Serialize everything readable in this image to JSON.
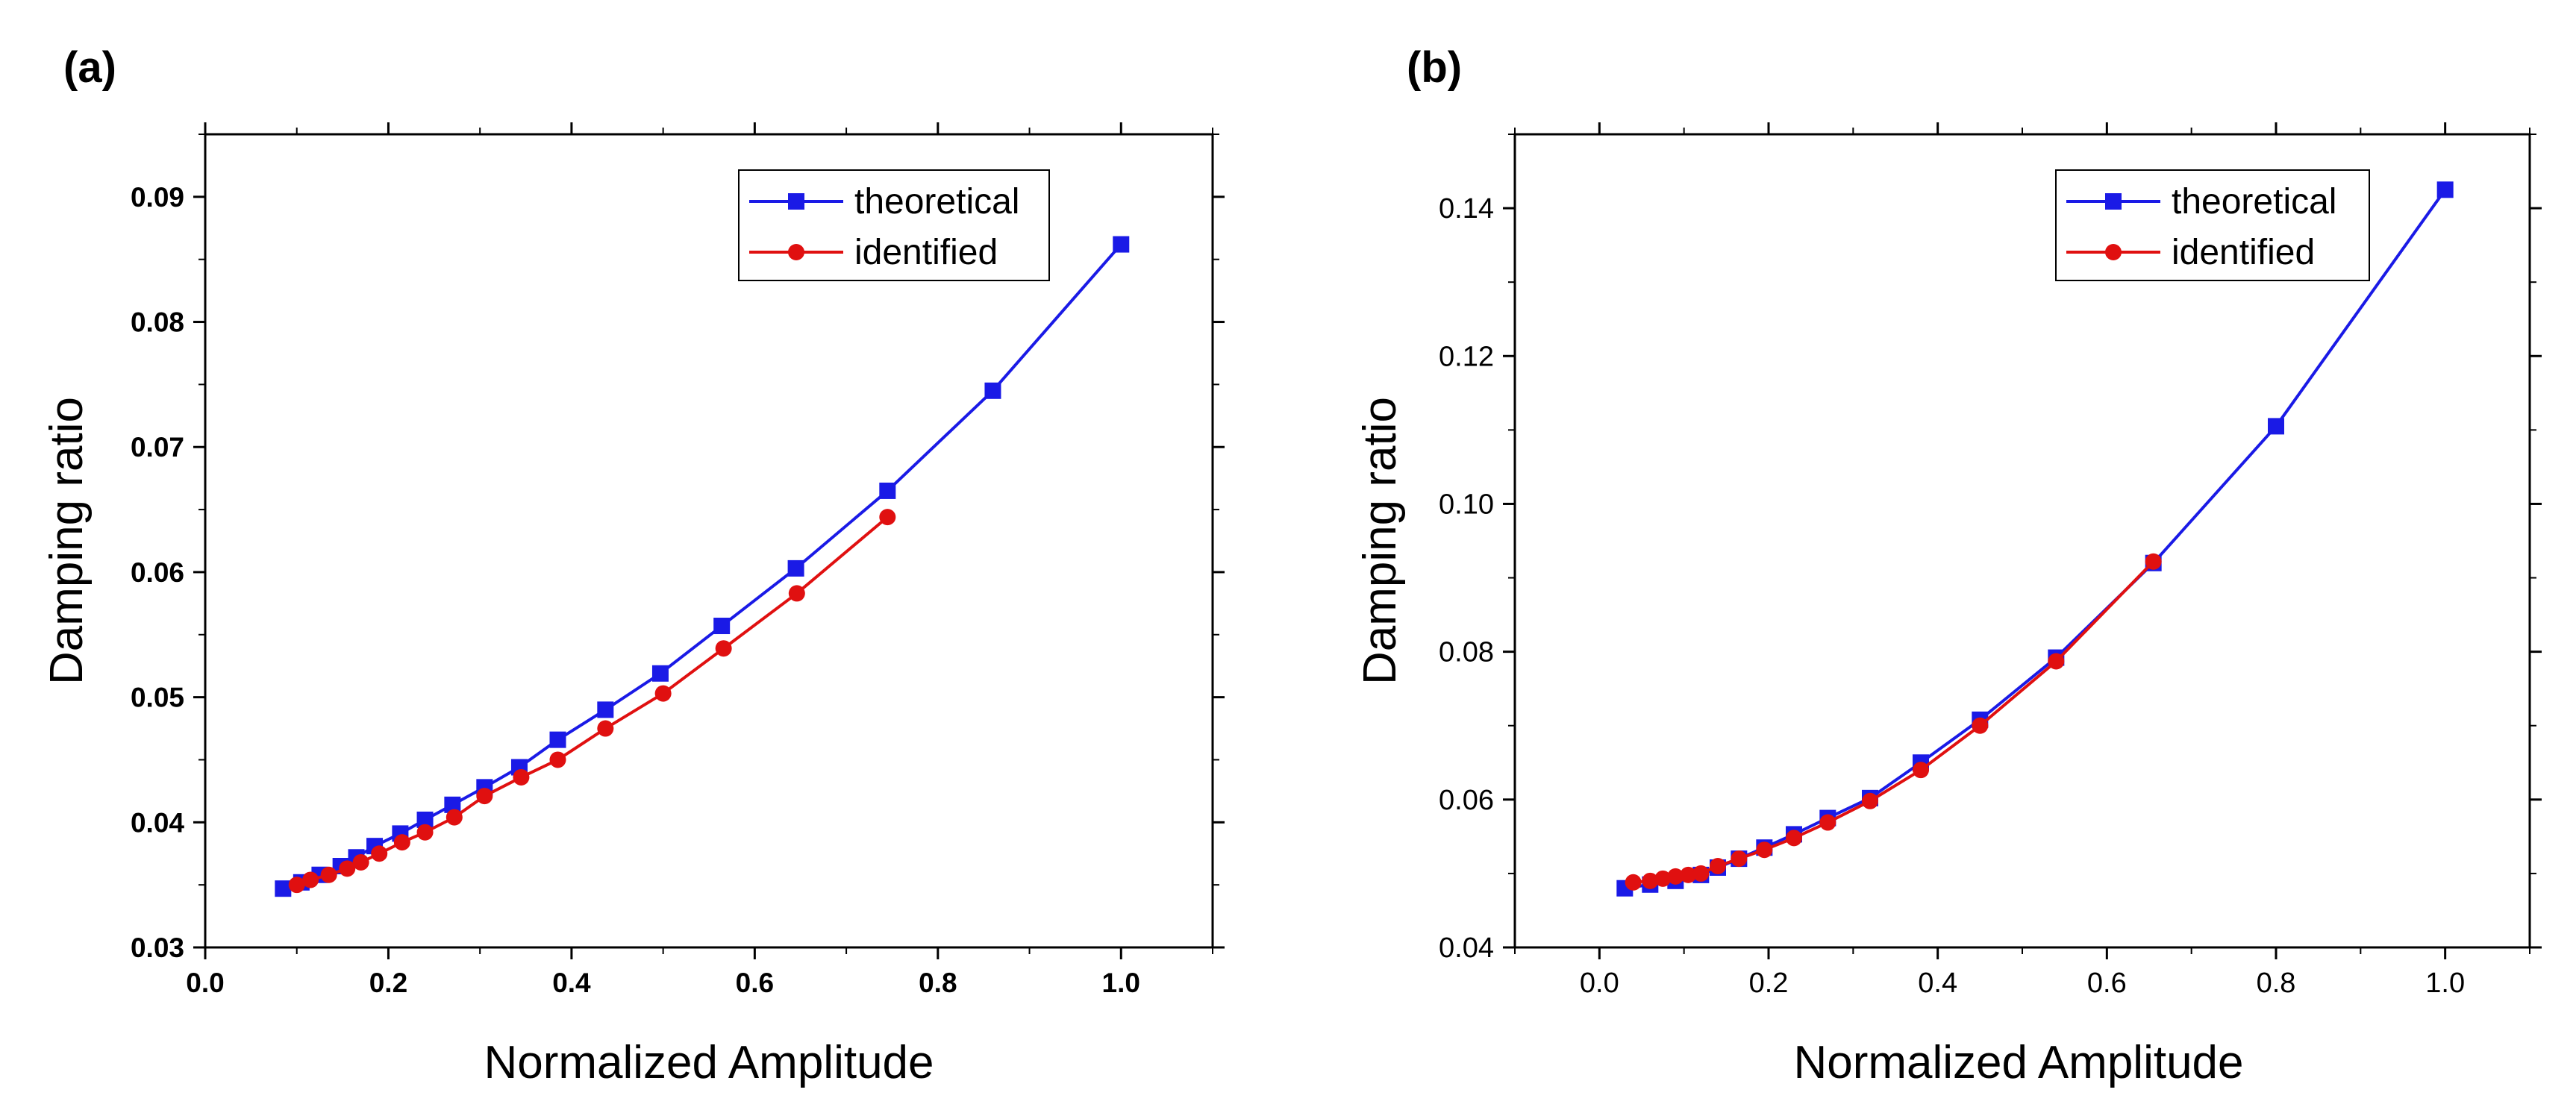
{
  "chart_data": [
    {
      "panel_label": "(a)",
      "type": "line",
      "xlabel": "Normalized Amplitude",
      "ylabel": "Damping ratio",
      "xlim": [
        0.0,
        1.1
      ],
      "ylim": [
        0.03,
        0.095
      ],
      "x_ticks": [
        "0.0",
        "0.2",
        "0.4",
        "0.6",
        "0.8",
        "1.0"
      ],
      "y_ticks": [
        "0.03",
        "0.04",
        "0.05",
        "0.06",
        "0.07",
        "0.08",
        "0.09"
      ],
      "legend_position": "top-right",
      "grid": false,
      "series": [
        {
          "name": "theoretical",
          "color": "#1a1ae6",
          "marker": "square",
          "x": [
            0.085,
            0.105,
            0.125,
            0.148,
            0.165,
            0.185,
            0.213,
            0.24,
            0.27,
            0.305,
            0.343,
            0.385,
            0.437,
            0.497,
            0.564,
            0.645,
            0.745,
            0.86,
            1.0
          ],
          "y": [
            0.0347,
            0.0352,
            0.0358,
            0.0365,
            0.0372,
            0.0381,
            0.0391,
            0.0402,
            0.0414,
            0.0428,
            0.0444,
            0.0466,
            0.049,
            0.0519,
            0.0557,
            0.0603,
            0.0665,
            0.0745,
            0.0862
          ]
        },
        {
          "name": "identified",
          "color": "#e01010",
          "marker": "circle",
          "x": [
            0.1,
            0.115,
            0.135,
            0.155,
            0.17,
            0.19,
            0.215,
            0.24,
            0.272,
            0.305,
            0.345,
            0.385,
            0.437,
            0.5,
            0.566,
            0.646,
            0.745
          ],
          "y": [
            0.035,
            0.0354,
            0.0358,
            0.0363,
            0.0368,
            0.0375,
            0.0384,
            0.0392,
            0.0404,
            0.0421,
            0.0436,
            0.045,
            0.0475,
            0.0503,
            0.0539,
            0.0583,
            0.0644
          ]
        }
      ]
    },
    {
      "panel_label": "(b)",
      "type": "line",
      "xlabel": "Normalized Amplitude",
      "ylabel": "Damping ratio",
      "xlim": [
        -0.1,
        1.1
      ],
      "ylim": [
        0.04,
        0.15
      ],
      "x_ticks": [
        "0.0",
        "0.2",
        "0.4",
        "0.6",
        "0.8",
        "1.0"
      ],
      "y_ticks": [
        "0.04",
        "0.06",
        "0.08",
        "0.10",
        "0.12",
        "0.14"
      ],
      "legend_position": "top-right",
      "grid": false,
      "series": [
        {
          "name": "theoretical",
          "color": "#1a1ae6",
          "marker": "square",
          "x": [
            0.03,
            0.06,
            0.09,
            0.12,
            0.14,
            0.165,
            0.195,
            0.23,
            0.27,
            0.32,
            0.38,
            0.45,
            0.54,
            0.655,
            0.8,
            1.0
          ],
          "y": [
            0.048,
            0.0485,
            0.049,
            0.0498,
            0.0508,
            0.052,
            0.0535,
            0.0553,
            0.0575,
            0.0602,
            0.065,
            0.0708,
            0.0792,
            0.092,
            0.1105,
            0.1425
          ]
        },
        {
          "name": "identified",
          "color": "#e01010",
          "marker": "circle",
          "x": [
            0.04,
            0.06,
            0.075,
            0.09,
            0.105,
            0.12,
            0.14,
            0.165,
            0.195,
            0.23,
            0.27,
            0.32,
            0.38,
            0.45,
            0.54,
            0.655
          ],
          "y": [
            0.0488,
            0.049,
            0.0493,
            0.0496,
            0.0498,
            0.05,
            0.051,
            0.052,
            0.0532,
            0.0548,
            0.0569,
            0.0598,
            0.064,
            0.07,
            0.0787,
            0.0922
          ]
        }
      ]
    }
  ]
}
